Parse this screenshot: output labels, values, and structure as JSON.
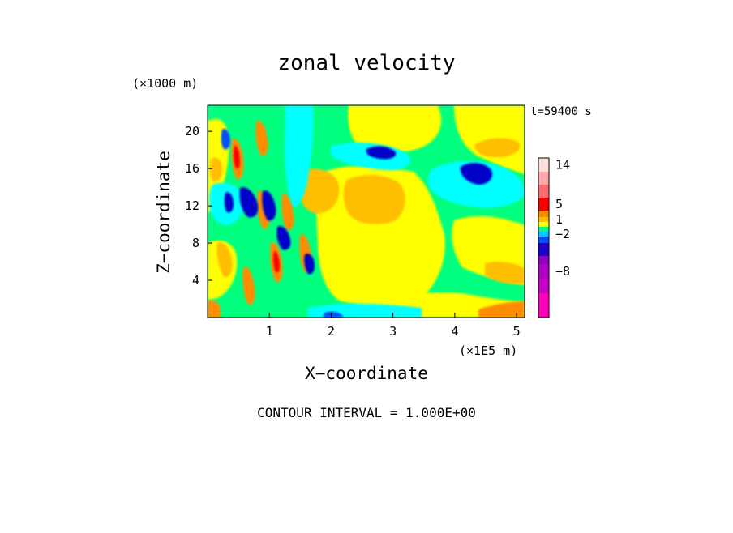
{
  "chart_data": {
    "type": "heatmap",
    "title": "zonal velocity",
    "xlabel": "X−coordinate",
    "ylabel": "Z−coordinate",
    "x_unit": "(×1E5 m)",
    "y_unit": "(×1000 m)",
    "time_label": "t=59400 s",
    "footer": "CONTOUR INTERVAL = 1.000E+00",
    "xlim": [
      0,
      5.13
    ],
    "ylim": [
      0,
      22.8
    ],
    "x_ticks": [
      {
        "value": 1,
        "label": "1"
      },
      {
        "value": 2,
        "label": "2"
      },
      {
        "value": 3,
        "label": "3"
      },
      {
        "value": 4,
        "label": "4"
      },
      {
        "value": 5,
        "label": "5"
      }
    ],
    "y_ticks": [
      {
        "value": 4,
        "label": "4"
      },
      {
        "value": 8,
        "label": "8"
      },
      {
        "value": 12,
        "label": "12"
      },
      {
        "value": 16,
        "label": "16"
      },
      {
        "value": 20,
        "label": "20"
      }
    ],
    "colorbar": {
      "levels": [
        {
          "color": "#ff00b8",
          "value": -12
        },
        {
          "color": "#c800c8",
          "value": -10
        },
        {
          "color": "#b000c8",
          "value": -8
        },
        {
          "color": "#8c00c8",
          "value": -6
        },
        {
          "color": "#1e00c8",
          "value": -4
        },
        {
          "color": "#0050ff",
          "value": -3
        },
        {
          "color": "#00c8ff",
          "value": -2
        },
        {
          "color": "#00ff7f",
          "value": -1
        },
        {
          "color": "#ffff00",
          "value": 0
        },
        {
          "color": "#ffbe00",
          "value": 1
        },
        {
          "color": "#ff8c00",
          "value": 2
        },
        {
          "color": "#ff0000",
          "value": 5
        },
        {
          "color": "#ff6e6e",
          "value": 8
        },
        {
          "color": "#ffaaaa",
          "value": 11
        },
        {
          "color": "#ffdede",
          "value": 14
        }
      ],
      "tick_labels": [
        {
          "value": 14,
          "label": "14"
        },
        {
          "value": 5,
          "label": "5"
        },
        {
          "value": 1,
          "label": "1"
        },
        {
          "value": -2,
          "label": "−2"
        },
        {
          "value": -8,
          "label": "−8"
        }
      ]
    },
    "field_colors": {
      "yellow": "#ffff00",
      "green": "#00ff7f",
      "cyan": "#00ffff",
      "orange": "#ffbe00",
      "dark_orange": "#ff8c00",
      "red": "#ff0000",
      "blue": "#0000c8"
    }
  }
}
